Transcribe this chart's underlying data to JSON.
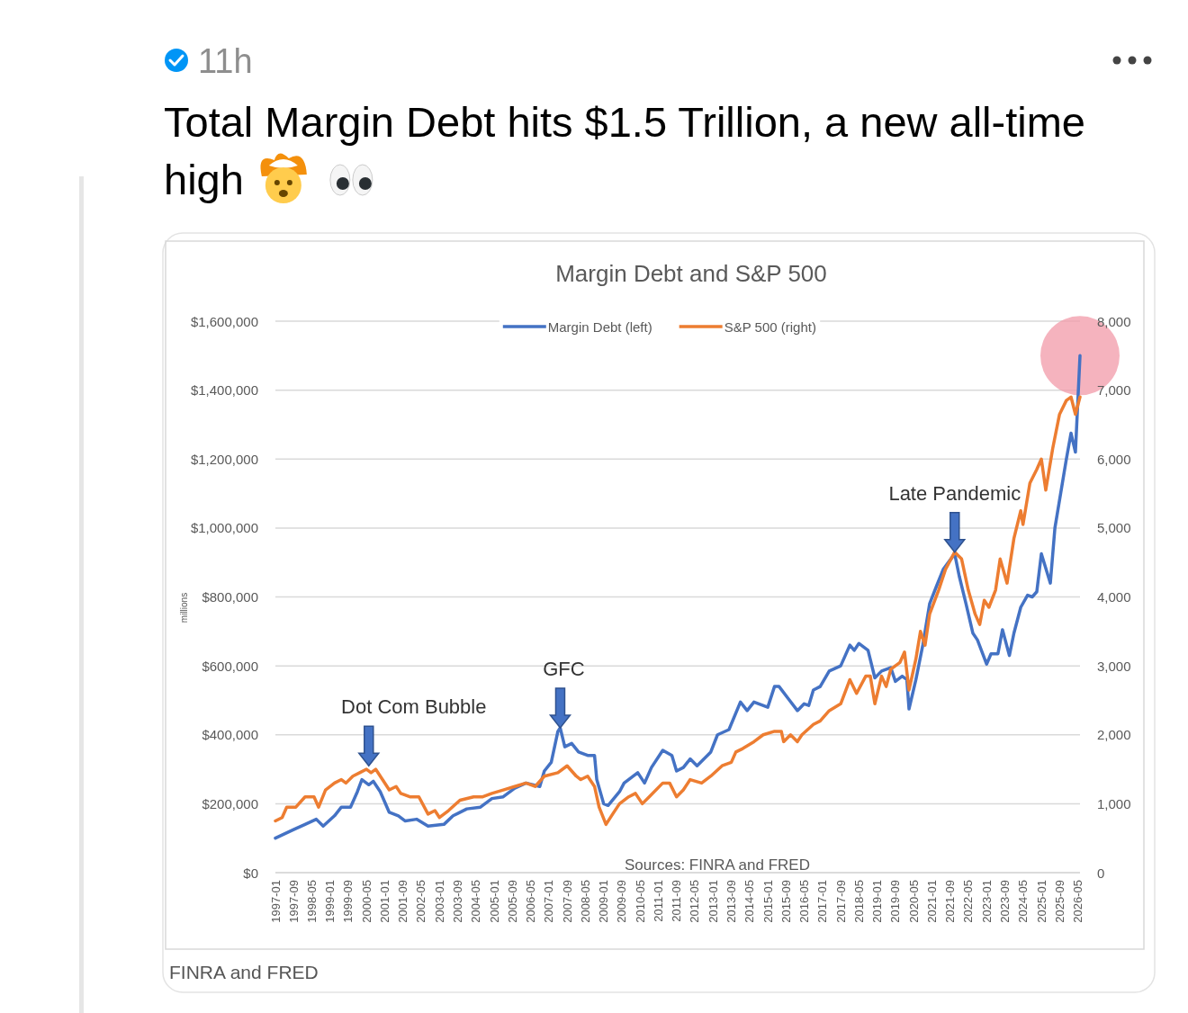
{
  "chart_data": {
    "type": "line",
    "title": "Margin Debt and S&P 500",
    "ylabel": "millions",
    "xlim": [
      "1997-01",
      "2026-06"
    ],
    "xticks": [
      "1997-01",
      "1997-09",
      "1998-05",
      "1999-01",
      "1999-09",
      "2000-05",
      "2001-01",
      "2001-09",
      "2002-05",
      "2003-01",
      "2003-09",
      "2004-05",
      "2005-01",
      "2005-09",
      "2006-05",
      "2007-01",
      "2007-09",
      "2008-05",
      "2009-01",
      "2009-09",
      "2010-05",
      "2011-01",
      "2011-09",
      "2012-05",
      "2013-01",
      "2013-09",
      "2014-05",
      "2015-01",
      "2015-09",
      "2016-05",
      "2017-01",
      "2017-09",
      "2018-05",
      "2019-01",
      "2019-09",
      "2020-05",
      "2021-01",
      "2021-09",
      "2022-05",
      "2023-01",
      "2023-09",
      "2024-05",
      "2025-01",
      "2025-09",
      "2026-05"
    ],
    "ylim": [
      0,
      1600000
    ],
    "yticks": [
      {
        "value": 0,
        "label": "$0"
      },
      {
        "value": 200000,
        "label": "$200,000"
      },
      {
        "value": 400000,
        "label": "$400,000"
      },
      {
        "value": 600000,
        "label": "$600,000"
      },
      {
        "value": 800000,
        "label": "$800,000"
      },
      {
        "value": 1000000,
        "label": "$1,000,000"
      },
      {
        "value": 1200000,
        "label": "$1,200,000"
      },
      {
        "value": 1400000,
        "label": "$1,400,000"
      },
      {
        "value": 1600000,
        "label": "$1,600,000"
      }
    ],
    "y2lim": [
      0,
      8000
    ],
    "y2ticks": [
      0,
      {
        "value": 1000,
        "label": "1,000"
      },
      {
        "value": 2000,
        "label": "2,000"
      },
      {
        "value": 3000,
        "label": "3,000"
      },
      {
        "value": 4000,
        "label": "4,000"
      },
      {
        "value": 5000,
        "label": "5,000"
      },
      {
        "value": 6000,
        "label": "6,000"
      },
      {
        "value": 7000,
        "label": "7,000"
      },
      {
        "value": 8000,
        "label": "8,000"
      }
    ],
    "grid": "y",
    "legend": "top",
    "series": [
      {
        "name": "Margin Debt (left)",
        "color": "#4472c4",
        "x": [
          "1997-01",
          "1997-09",
          "1998-02",
          "1998-07",
          "1998-10",
          "1999-03",
          "1999-06",
          "1999-10",
          "2000-01",
          "2000-03",
          "2000-06",
          "2000-08",
          "2000-11",
          "2001-03",
          "2001-07",
          "2001-10",
          "2002-03",
          "2002-08",
          "2003-03",
          "2003-07",
          "2004-01",
          "2004-07",
          "2004-12",
          "2005-05",
          "2005-10",
          "2006-03",
          "2006-09",
          "2006-11",
          "2007-02",
          "2007-05",
          "2007-06",
          "2007-08",
          "2007-11",
          "2008-02",
          "2008-06",
          "2008-09",
          "2008-10",
          "2009-01",
          "2009-03",
          "2009-08",
          "2009-10",
          "2010-04",
          "2010-07",
          "2010-10",
          "2011-03",
          "2011-07",
          "2011-09",
          "2011-12",
          "2012-03",
          "2012-06",
          "2012-12",
          "2013-03",
          "2013-08",
          "2014-01",
          "2014-04",
          "2014-07",
          "2015-01",
          "2015-04",
          "2015-06",
          "2015-10",
          "2016-02",
          "2016-05",
          "2016-07",
          "2016-09",
          "2016-12",
          "2017-04",
          "2017-09",
          "2018-01",
          "2018-03",
          "2018-05",
          "2018-09",
          "2018-12",
          "2019-03",
          "2019-07",
          "2019-09",
          "2019-12",
          "2020-02",
          "2020-03",
          "2020-06",
          "2020-09",
          "2020-12",
          "2021-03",
          "2021-06",
          "2021-11",
          "2022-01",
          "2022-04",
          "2022-07",
          "2022-09",
          "2023-01",
          "2023-03",
          "2023-06",
          "2023-08",
          "2023-11",
          "2024-01",
          "2024-04",
          "2024-07",
          "2024-09",
          "2024-11",
          "2025-01",
          "2025-05",
          "2025-07",
          "2025-12",
          "2026-02",
          "2026-04",
          "2026-06"
        ],
        "values": [
          100000,
          125000,
          140000,
          155000,
          135000,
          165000,
          190000,
          190000,
          235000,
          270000,
          255000,
          265000,
          235000,
          175000,
          165000,
          150000,
          155000,
          135000,
          140000,
          165000,
          185000,
          190000,
          215000,
          220000,
          245000,
          260000,
          250000,
          295000,
          320000,
          410000,
          420000,
          365000,
          375000,
          350000,
          340000,
          340000,
          270000,
          200000,
          195000,
          235000,
          260000,
          290000,
          260000,
          305000,
          355000,
          340000,
          295000,
          305000,
          330000,
          310000,
          350000,
          400000,
          415000,
          495000,
          470000,
          495000,
          480000,
          540000,
          540000,
          505000,
          470000,
          490000,
          485000,
          530000,
          540000,
          585000,
          600000,
          660000,
          645000,
          665000,
          645000,
          565000,
          585000,
          595000,
          555000,
          570000,
          560000,
          475000,
          560000,
          660000,
          780000,
          830000,
          880000,
          925000,
          860000,
          780000,
          695000,
          675000,
          605000,
          635000,
          635000,
          705000,
          630000,
          695000,
          770000,
          805000,
          800000,
          815000,
          925000,
          840000,
          1000000,
          1200000,
          1275000,
          1220000,
          1500000
        ]
      },
      {
        "name": "S&P 500 (right)",
        "color": "#ed7d31",
        "axis": "y2",
        "x": [
          "1997-01",
          "1997-04",
          "1997-06",
          "1997-10",
          "1998-02",
          "1998-06",
          "1998-08",
          "1998-11",
          "1999-03",
          "1999-06",
          "1999-08",
          "1999-11",
          "2000-02",
          "2000-05",
          "2000-07",
          "2000-09",
          "2000-12",
          "2001-03",
          "2001-06",
          "2001-08",
          "2001-12",
          "2002-04",
          "2002-08",
          "2002-11",
          "2003-01",
          "2003-05",
          "2003-10",
          "2004-04",
          "2004-08",
          "2004-12",
          "2005-05",
          "2005-10",
          "2006-03",
          "2006-07",
          "2006-11",
          "2007-05",
          "2007-09",
          "2008-01",
          "2008-03",
          "2008-06",
          "2008-09",
          "2008-11",
          "2009-02",
          "2009-05",
          "2009-08",
          "2009-12",
          "2010-03",
          "2010-06",
          "2010-09",
          "2011-03",
          "2011-06",
          "2011-09",
          "2011-12",
          "2012-03",
          "2012-08",
          "2012-12",
          "2013-05",
          "2013-09",
          "2013-11",
          "2014-02",
          "2014-07",
          "2014-11",
          "2015-04",
          "2015-07",
          "2015-08",
          "2015-11",
          "2016-02",
          "2016-04",
          "2016-09",
          "2016-12",
          "2017-04",
          "2017-09",
          "2018-01",
          "2018-04",
          "2018-08",
          "2018-10",
          "2018-12",
          "2019-03",
          "2019-05",
          "2019-07",
          "2019-11",
          "2020-01",
          "2020-03",
          "2020-06",
          "2020-08",
          "2020-10",
          "2020-12",
          "2021-04",
          "2021-07",
          "2021-11",
          "2022-02",
          "2022-05",
          "2022-08",
          "2022-10",
          "2022-12",
          "2023-02",
          "2023-05",
          "2023-07",
          "2023-10",
          "2024-01",
          "2024-04",
          "2024-05",
          "2024-08",
          "2024-11",
          "2025-01",
          "2025-03",
          "2025-06",
          "2025-09",
          "2025-12",
          "2026-02",
          "2026-04",
          "2026-06"
        ],
        "values": [
          750,
          800,
          950,
          950,
          1100,
          1100,
          950,
          1200,
          1300,
          1350,
          1300,
          1400,
          1450,
          1500,
          1450,
          1500,
          1350,
          1200,
          1250,
          1150,
          1100,
          1100,
          850,
          900,
          800,
          900,
          1050,
          1100,
          1100,
          1150,
          1200,
          1250,
          1300,
          1250,
          1400,
          1450,
          1550,
          1400,
          1350,
          1400,
          1250,
          950,
          700,
          850,
          1000,
          1100,
          1150,
          1000,
          1100,
          1300,
          1300,
          1100,
          1200,
          1350,
          1300,
          1400,
          1550,
          1600,
          1750,
          1800,
          1900,
          2000,
          2050,
          2050,
          1900,
          2000,
          1900,
          2000,
          2150,
          2200,
          2350,
          2450,
          2800,
          2600,
          2850,
          2850,
          2450,
          2850,
          2700,
          2950,
          3050,
          3200,
          2650,
          3100,
          3500,
          3300,
          3750,
          4100,
          4400,
          4650,
          4550,
          4100,
          3750,
          3600,
          3950,
          3850,
          4100,
          4550,
          4200,
          4850,
          5250,
          5050,
          5650,
          5850,
          6000,
          5550,
          6150,
          6650,
          6850,
          6900,
          6650,
          6900
        ]
      }
    ],
    "annotations": [
      "Total Margin Debt hits $1.5 Trillion, a new all-time high",
      "11h",
      {
        "text": "Dot Com Bubble",
        "x": "2000-06",
        "y": 310000
      },
      {
        "text": "GFC",
        "x": "2007-06",
        "y": 420000
      },
      {
        "text": "Late Pandemic",
        "x": "2021-11",
        "y": 930000
      },
      "Sources: FINRA and FRED",
      "FINRA and FRED"
    ]
  }
}
